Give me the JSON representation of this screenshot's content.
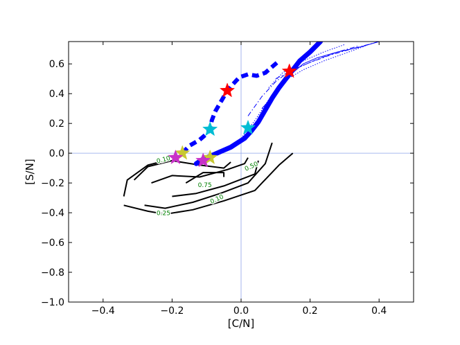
{
  "chart_data": {
    "type": "line",
    "xlabel": "[C/N]",
    "ylabel": "[S/N]",
    "xlim": [
      -0.5,
      0.5
    ],
    "ylim": [
      -1.0,
      0.75
    ],
    "xticks": [
      -0.4,
      -0.2,
      0.0,
      0.2,
      0.4
    ],
    "xtick_labels": [
      "−0.4",
      "−0.2",
      "0.0",
      "0.2",
      "0.4"
    ],
    "yticks": [
      -1.0,
      -0.8,
      -0.6,
      -0.4,
      -0.2,
      0.0,
      0.2,
      0.4,
      0.6
    ],
    "ytick_labels": [
      "−1.0",
      "−0.8",
      "−0.6",
      "−0.4",
      "−0.2",
      "0.0",
      "0.2",
      "0.4",
      "0.6"
    ],
    "reference_lines": {
      "x": 0.0,
      "y": 0.0,
      "color": "#8da3e8"
    },
    "grid": false,
    "legend": "none",
    "contour_color": "#000000",
    "contour_label_color": "#008000",
    "contours": [
      {
        "level_label": "0.10",
        "points": [
          [
            -0.34,
            -0.35
          ],
          [
            -0.27,
            -0.39
          ],
          [
            -0.22,
            -0.41
          ],
          [
            -0.14,
            -0.38
          ],
          [
            -0.05,
            -0.32
          ],
          [
            0.04,
            -0.25
          ],
          [
            0.11,
            -0.08
          ],
          [
            0.15,
            0.0
          ]
        ]
      },
      {
        "level_label": "0.10",
        "points": [
          [
            -0.34,
            -0.29
          ],
          [
            -0.33,
            -0.18
          ],
          [
            -0.27,
            -0.08
          ],
          [
            -0.22,
            -0.05
          ]
        ]
      },
      {
        "level_label": "0.25",
        "points": [
          [
            -0.31,
            -0.18
          ],
          [
            -0.27,
            -0.09
          ],
          [
            -0.2,
            -0.05
          ],
          [
            -0.12,
            -0.08
          ],
          [
            -0.05,
            -0.1
          ],
          [
            -0.03,
            -0.06
          ]
        ]
      },
      {
        "level_label": "0.25",
        "points": [
          [
            -0.28,
            -0.35
          ],
          [
            -0.22,
            -0.37
          ],
          [
            -0.14,
            -0.33
          ],
          [
            -0.06,
            -0.27
          ],
          [
            0.02,
            -0.2
          ],
          [
            0.07,
            -0.07
          ],
          [
            0.09,
            0.07
          ]
        ]
      },
      {
        "level_label": "0.50",
        "points": [
          [
            -0.26,
            -0.2
          ],
          [
            -0.2,
            -0.15
          ],
          [
            -0.12,
            -0.16
          ],
          [
            -0.04,
            -0.11
          ],
          [
            0.01,
            -0.07
          ],
          [
            0.02,
            -0.03
          ]
        ]
      },
      {
        "level_label": "0.50",
        "points": [
          [
            -0.2,
            -0.29
          ],
          [
            -0.13,
            -0.27
          ],
          [
            -0.05,
            -0.22
          ],
          [
            0.04,
            -0.14
          ],
          [
            0.05,
            -0.05
          ]
        ]
      },
      {
        "level_label": "0.75",
        "points": [
          [
            -0.16,
            -0.2
          ],
          [
            -0.11,
            -0.13
          ],
          [
            -0.05,
            -0.13
          ],
          [
            -0.05,
            -0.16
          ]
        ]
      }
    ],
    "contour_labels": [
      {
        "text": "0.10",
        "x": -0.225,
        "y": -0.045,
        "angle": -15
      },
      {
        "text": "0.50",
        "x": 0.03,
        "y": -0.09,
        "angle": -25
      },
      {
        "text": "0.75",
        "x": -0.105,
        "y": -0.215,
        "angle": 0
      },
      {
        "text": "0.25",
        "x": -0.225,
        "y": -0.405,
        "angle": 0
      },
      {
        "text": "0.10",
        "x": -0.07,
        "y": -0.31,
        "angle": -25
      }
    ],
    "series": [
      {
        "style": "thick-solid",
        "color": "#0000ff",
        "x": [
          -0.13,
          -0.11,
          -0.08,
          -0.05,
          -0.03,
          -0.01,
          0.01,
          0.03,
          0.05,
          0.07,
          0.09,
          0.11,
          0.13,
          0.15,
          0.17,
          0.2,
          0.23
        ],
        "y": [
          -0.07,
          -0.04,
          -0.01,
          0.02,
          0.04,
          0.07,
          0.1,
          0.15,
          0.21,
          0.29,
          0.37,
          0.44,
          0.5,
          0.56,
          0.62,
          0.68,
          0.75
        ]
      },
      {
        "style": "thick-dashed",
        "color": "#0000ff",
        "x": [
          -0.17,
          -0.15,
          -0.12,
          -0.1,
          -0.09,
          -0.085,
          -0.075,
          -0.06,
          -0.045,
          -0.025,
          -0.005,
          0.02,
          0.045,
          0.07,
          0.09,
          0.11
        ],
        "y": [
          0.0,
          0.05,
          0.09,
          0.13,
          0.16,
          0.22,
          0.28,
          0.34,
          0.4,
          0.46,
          0.51,
          0.53,
          0.52,
          0.54,
          0.58,
          0.62
        ]
      },
      {
        "style": "thin-solid",
        "color": "#0000ff",
        "x": [
          0.06,
          0.1,
          0.14,
          0.18,
          0.22,
          0.28,
          0.34,
          0.4
        ],
        "y": [
          0.3,
          0.4,
          0.52,
          0.6,
          0.64,
          0.68,
          0.71,
          0.75
        ]
      },
      {
        "style": "thin-dotted",
        "color": "#0000ff",
        "x": [
          0.0,
          0.04,
          0.08,
          0.12,
          0.18,
          0.24,
          0.3,
          0.36
        ],
        "y": [
          0.1,
          0.22,
          0.36,
          0.48,
          0.56,
          0.62,
          0.67,
          0.72
        ]
      },
      {
        "style": "thin-dotted",
        "color": "#0000ff",
        "x": [
          0.08,
          0.12,
          0.18,
          0.24,
          0.3
        ],
        "y": [
          0.44,
          0.54,
          0.62,
          0.68,
          0.73
        ]
      },
      {
        "style": "thin-dashdot",
        "color": "#0000ff",
        "x": [
          0.02,
          0.06,
          0.1,
          0.14,
          0.2,
          0.26,
          0.32,
          0.4
        ],
        "y": [
          0.25,
          0.38,
          0.48,
          0.55,
          0.61,
          0.66,
          0.7,
          0.75
        ]
      },
      {
        "style": "thin-dashdot",
        "color": "#0000ff",
        "x": [
          0.1,
          0.16,
          0.22,
          0.28,
          0.34
        ],
        "y": [
          0.5,
          0.57,
          0.63,
          0.68,
          0.72
        ]
      }
    ],
    "markers": [
      {
        "shape": "star",
        "color": "#ff0000",
        "x": -0.04,
        "y": 0.42
      },
      {
        "shape": "star",
        "color": "#ff0000",
        "x": 0.14,
        "y": 0.55
      },
      {
        "shape": "star",
        "color": "#00bcd4",
        "x": -0.09,
        "y": 0.16
      },
      {
        "shape": "star",
        "color": "#00bcd4",
        "x": 0.02,
        "y": 0.17
      },
      {
        "shape": "star",
        "color": "#c8c832",
        "x": -0.17,
        "y": 0.0
      },
      {
        "shape": "star",
        "color": "#c8c832",
        "x": -0.09,
        "y": -0.03
      },
      {
        "shape": "star",
        "color": "#c832c8",
        "x": -0.19,
        "y": -0.03
      },
      {
        "shape": "star",
        "color": "#c832c8",
        "x": -0.11,
        "y": -0.05
      }
    ]
  }
}
